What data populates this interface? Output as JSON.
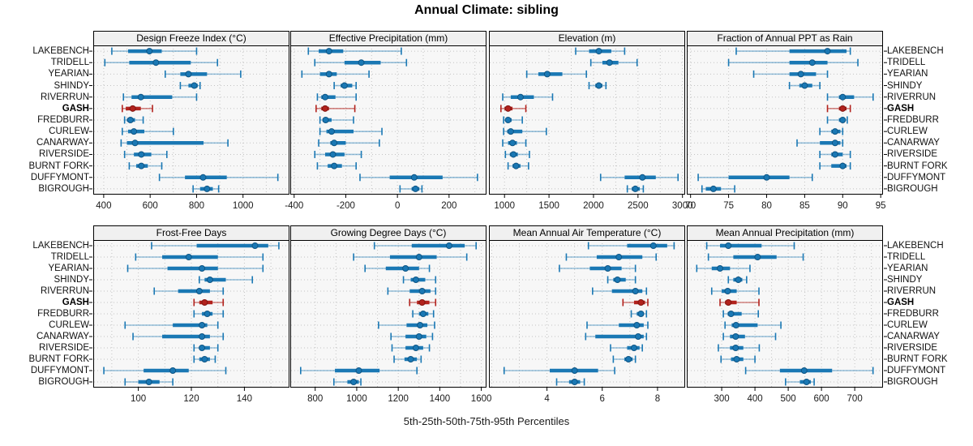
{
  "title": "Annual Climate: sibling",
  "caption": "5th-25th-50th-75th-95th Percentiles",
  "colors": {
    "series": "#1a78b4",
    "series_dark": "#0e5483",
    "series_faint": "rgba(26,120,180,0.45)",
    "highlight": "#b2221d",
    "highlight_dark": "#801510",
    "highlight_faint": "rgba(178,34,29,0.55)",
    "strip_bg": "#f0f0f0",
    "panel_bg": "#f7f7f7",
    "grid": "#c3c3c3",
    "border": "#000000",
    "tick_text": "#1a1a1a"
  },
  "chart_data": {
    "type": "dotplot-percentiles",
    "percentiles": [
      5,
      25,
      50,
      75,
      95
    ],
    "legend_note": "thin line = 5th-95th, thick bar = 25th-75th, dot = median",
    "rows": [
      "LAKEBENCH",
      "TRIDELL",
      "YEARIAN",
      "SHINDY",
      "RIVERRUN",
      "GASH",
      "FREDBURR",
      "CURLEW",
      "CANARWAY",
      "RIVERSIDE",
      "BURNT FORK",
      "DUFFYMONT",
      "BIGROUGH"
    ],
    "highlight_row": "GASH",
    "layout": {
      "panel_rows": 2,
      "panel_cols": 4,
      "grid": "dotted"
    },
    "panels": [
      {
        "title": "Design Freeze Index (°C)",
        "xlim": [
          355,
          1200
        ],
        "ticks": [
          400,
          600,
          800,
          1000
        ],
        "minor_grid": [
          500,
          700,
          900,
          1100
        ],
        "values": [
          [
            435,
            505,
            597,
            650,
            800
          ],
          [
            405,
            510,
            625,
            775,
            890
          ],
          [
            665,
            730,
            765,
            845,
            990
          ],
          [
            730,
            765,
            790,
            805,
            815
          ],
          [
            485,
            520,
            560,
            695,
            800
          ],
          [
            480,
            495,
            525,
            560,
            610
          ],
          [
            490,
            500,
            515,
            535,
            570
          ],
          [
            480,
            505,
            530,
            575,
            700
          ],
          [
            475,
            500,
            535,
            830,
            935
          ],
          [
            490,
            530,
            562,
            605,
            672
          ],
          [
            510,
            540,
            562,
            590,
            650
          ],
          [
            640,
            750,
            828,
            930,
            1150
          ],
          [
            785,
            815,
            845,
            870,
            895
          ]
        ]
      },
      {
        "title": "Effective Precipitation (mm)",
        "xlim": [
          -415,
          345
        ],
        "ticks": [
          -400,
          -200,
          0,
          200
        ],
        "minor_grid": [
          -300,
          -100,
          100,
          300
        ],
        "values": [
          [
            -345,
            -305,
            -265,
            -210,
            15
          ],
          [
            -320,
            -205,
            -140,
            -65,
            35
          ],
          [
            -370,
            -300,
            -265,
            -235,
            -110
          ],
          [
            -245,
            -220,
            -205,
            -175,
            -160
          ],
          [
            -310,
            -295,
            -280,
            -240,
            -160
          ],
          [
            -315,
            -295,
            -280,
            -265,
            -165
          ],
          [
            -300,
            -290,
            -278,
            -255,
            -170
          ],
          [
            -300,
            -275,
            -255,
            -170,
            -60
          ],
          [
            -305,
            -260,
            -245,
            -200,
            -70
          ],
          [
            -320,
            -280,
            -250,
            -205,
            -140
          ],
          [
            -310,
            -270,
            -245,
            -215,
            -160
          ],
          [
            -145,
            -30,
            65,
            175,
            310
          ],
          [
            10,
            55,
            70,
            85,
            95
          ]
        ]
      },
      {
        "title": "Elevation (m)",
        "xlim": [
          825,
          3030
        ],
        "ticks": [
          1000,
          1500,
          2000,
          2500,
          3000
        ],
        "minor_grid": [
          1250,
          1750,
          2250,
          2750
        ],
        "values": [
          [
            1800,
            1950,
            2060,
            2200,
            2350
          ],
          [
            1970,
            2100,
            2180,
            2280,
            2490
          ],
          [
            1250,
            1380,
            1480,
            1650,
            1920
          ],
          [
            1950,
            2020,
            2060,
            2100,
            2140
          ],
          [
            980,
            1070,
            1180,
            1330,
            1540
          ],
          [
            960,
            1000,
            1040,
            1090,
            1240
          ],
          [
            990,
            1020,
            1040,
            1080,
            1200
          ],
          [
            990,
            1030,
            1070,
            1200,
            1470
          ],
          [
            980,
            1040,
            1090,
            1140,
            1240
          ],
          [
            1010,
            1060,
            1100,
            1150,
            1280
          ],
          [
            1040,
            1090,
            1130,
            1180,
            1270
          ],
          [
            2080,
            2350,
            2550,
            2700,
            2950
          ],
          [
            2380,
            2430,
            2470,
            2520,
            2560
          ]
        ]
      },
      {
        "title": "Fraction of Annual PPT as Rain",
        "xlim": [
          69.5,
          95.3
        ],
        "ticks": [
          70,
          75,
          80,
          85,
          90,
          95
        ],
        "minor_grid": [],
        "values": [
          [
            76,
            83,
            88,
            90.5,
            91
          ],
          [
            75,
            83,
            86,
            88,
            92
          ],
          [
            78.3,
            83,
            84.5,
            86.5,
            88
          ],
          [
            83,
            84.3,
            85,
            86,
            87
          ],
          [
            88,
            89.5,
            90,
            91.5,
            94
          ],
          [
            88,
            89.5,
            90,
            90.5,
            91
          ],
          [
            88,
            89.5,
            90,
            90.3,
            90.6
          ],
          [
            87,
            88.5,
            89,
            89.7,
            90
          ],
          [
            84,
            87,
            89,
            89.7,
            90
          ],
          [
            87,
            88.5,
            89,
            90,
            91
          ],
          [
            87,
            88.5,
            90,
            90.5,
            91
          ],
          [
            71,
            75,
            80,
            83,
            86
          ],
          [
            71.5,
            72,
            73,
            74,
            75.8
          ]
        ]
      },
      {
        "title": "Frost-Free Days",
        "xlim": [
          83,
          157
        ],
        "ticks": [
          100,
          120,
          140
        ],
        "minor_grid": [
          90,
          110,
          130,
          150
        ],
        "values": [
          [
            105,
            122,
            144,
            149,
            153
          ],
          [
            99,
            109,
            119,
            130,
            147
          ],
          [
            96,
            111,
            124,
            130,
            147
          ],
          [
            123,
            125,
            127,
            133,
            143
          ],
          [
            106,
            115,
            123,
            127,
            132
          ],
          [
            121,
            123,
            125,
            128,
            132
          ],
          [
            121,
            124,
            126,
            128,
            132
          ],
          [
            95,
            113,
            124,
            126,
            130
          ],
          [
            98,
            109,
            124,
            127,
            132
          ],
          [
            121,
            123,
            124,
            127,
            130
          ],
          [
            121,
            123,
            125,
            127,
            129
          ],
          [
            87,
            102,
            113,
            119,
            133
          ],
          [
            95,
            100,
            104,
            108,
            113
          ]
        ]
      },
      {
        "title": "Growing Degree Days (°C)",
        "xlim": [
          680,
          1625
        ],
        "ticks": [
          800,
          1000,
          1200,
          1400,
          1600
        ],
        "minor_grid": [
          900,
          1100,
          1300,
          1500
        ],
        "values": [
          [
            1085,
            1265,
            1445,
            1520,
            1575
          ],
          [
            985,
            1160,
            1300,
            1385,
            1530
          ],
          [
            1040,
            1140,
            1235,
            1300,
            1350
          ],
          [
            1225,
            1260,
            1285,
            1330,
            1380
          ],
          [
            1150,
            1255,
            1315,
            1355,
            1380
          ],
          [
            1255,
            1290,
            1315,
            1350,
            1380
          ],
          [
            1270,
            1300,
            1320,
            1345,
            1370
          ],
          [
            1105,
            1240,
            1305,
            1340,
            1375
          ],
          [
            1165,
            1235,
            1300,
            1335,
            1365
          ],
          [
            1170,
            1235,
            1285,
            1320,
            1350
          ],
          [
            1180,
            1230,
            1260,
            1290,
            1310
          ],
          [
            730,
            895,
            1010,
            1110,
            1290
          ],
          [
            890,
            955,
            985,
            1010,
            1020
          ]
        ]
      },
      {
        "title": "Mean Annual Air Temperature (°C)",
        "xlim": [
          1.9,
          9.0
        ],
        "ticks": [
          4,
          6,
          8
        ],
        "minor_grid": [
          2,
          3,
          5,
          7,
          9
        ],
        "values": [
          [
            5.5,
            6.9,
            7.85,
            8.35,
            8.6
          ],
          [
            4.7,
            5.8,
            6.6,
            7.45,
            7.95
          ],
          [
            4.45,
            5.55,
            6.2,
            6.7,
            7.2
          ],
          [
            6.2,
            6.4,
            6.55,
            6.85,
            7.2
          ],
          [
            5.65,
            6.35,
            7.2,
            7.45,
            7.6
          ],
          [
            6.75,
            7.15,
            7.4,
            7.55,
            7.65
          ],
          [
            7.05,
            7.25,
            7.4,
            7.5,
            7.6
          ],
          [
            5.45,
            6.6,
            7.25,
            7.5,
            7.65
          ],
          [
            5.4,
            5.75,
            7.3,
            7.5,
            7.6
          ],
          [
            6.3,
            6.9,
            7.15,
            7.35,
            7.45
          ],
          [
            6.4,
            6.8,
            6.95,
            7.1,
            7.2
          ],
          [
            2.45,
            4.1,
            5.0,
            5.85,
            6.45
          ],
          [
            4.35,
            4.8,
            5.0,
            5.2,
            5.35
          ]
        ]
      },
      {
        "title": "Mean Annual Precipitation (mm)",
        "xlim": [
          195,
          785
        ],
        "ticks": [
          300,
          400,
          500,
          600,
          700
        ],
        "minor_grid": [
          250,
          350,
          450,
          550,
          650,
          750
        ],
        "values": [
          [
            255,
            295,
            320,
            420,
            518
          ],
          [
            260,
            335,
            408,
            465,
            545
          ],
          [
            225,
            270,
            295,
            325,
            385
          ],
          [
            320,
            335,
            350,
            362,
            375
          ],
          [
            270,
            300,
            318,
            345,
            412
          ],
          [
            295,
            310,
            320,
            345,
            412
          ],
          [
            305,
            318,
            328,
            360,
            410
          ],
          [
            310,
            330,
            343,
            408,
            478
          ],
          [
            305,
            325,
            342,
            370,
            462
          ],
          [
            290,
            325,
            342,
            365,
            413
          ],
          [
            298,
            328,
            345,
            365,
            400
          ],
          [
            372,
            475,
            548,
            632,
            755
          ],
          [
            492,
            535,
            555,
            568,
            578
          ]
        ]
      }
    ]
  }
}
